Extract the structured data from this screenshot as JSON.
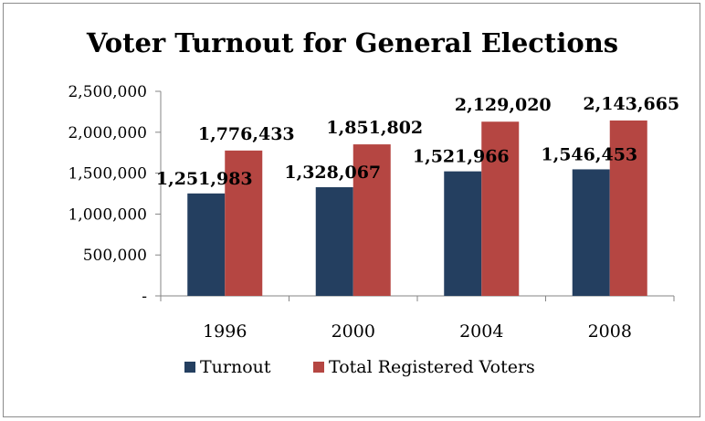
{
  "chart_data": {
    "type": "bar",
    "title": "Voter Turnout for General Elections",
    "categories": [
      "1996",
      "2000",
      "2004",
      "2008"
    ],
    "series": [
      {
        "name": "Turnout",
        "color": "#243f60",
        "values": [
          1251983,
          1328067,
          1521966,
          1546453
        ],
        "labels": [
          "1,251,983",
          "1,328,067",
          "1,521,966",
          "1,546,453"
        ]
      },
      {
        "name": "Total Registered Voters",
        "color": "#b54642",
        "values": [
          1776433,
          1851802,
          2129020,
          2143665
        ],
        "labels": [
          "1,776,433",
          "1,851,802",
          "2,129,020",
          "2,143,665"
        ]
      }
    ],
    "ylim": [
      0,
      2500000
    ],
    "yticks": [
      {
        "value": 0,
        "label": "-"
      },
      {
        "value": 500000,
        "label": "500,000"
      },
      {
        "value": 1000000,
        "label": "1,000,000"
      },
      {
        "value": 1500000,
        "label": "1,500,000"
      },
      {
        "value": 2000000,
        "label": "2,000,000"
      },
      {
        "value": 2500000,
        "label": "2,500,000"
      }
    ],
    "grid": false,
    "legend_position": "bottom"
  }
}
